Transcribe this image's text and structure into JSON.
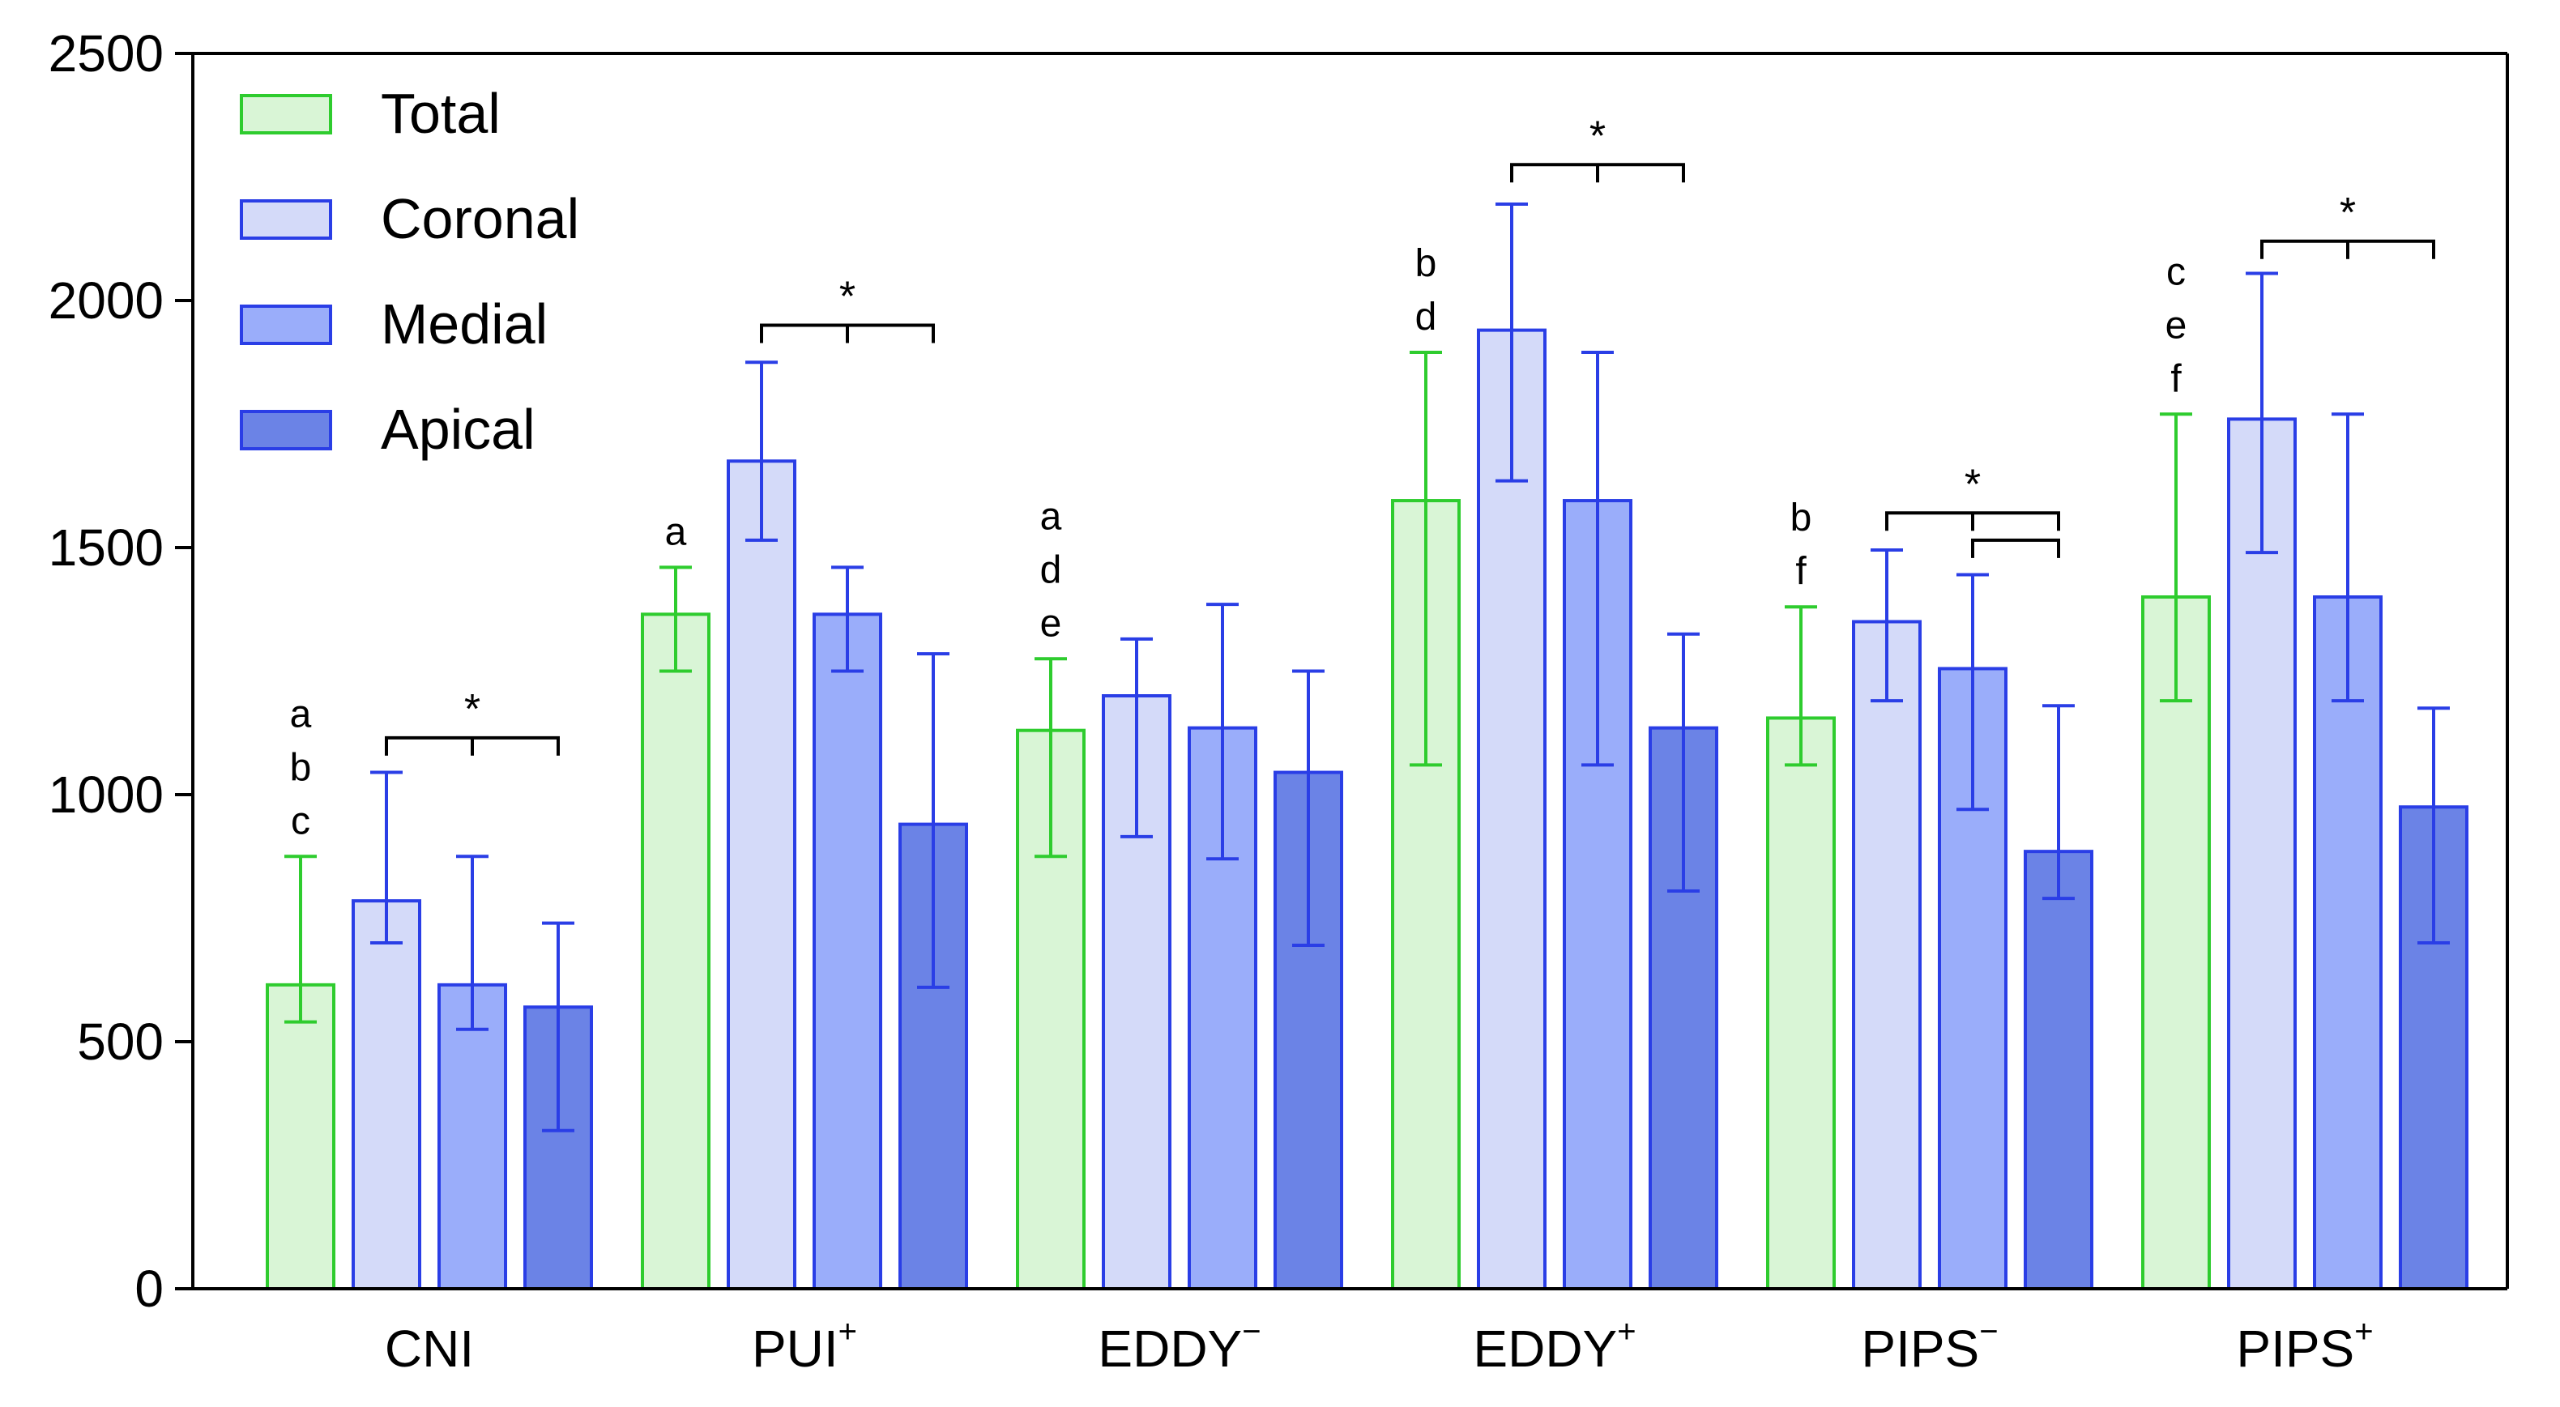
{
  "chart_data": {
    "type": "bar",
    "title": "",
    "xlabel": "",
    "ylabel": "",
    "ylim": [
      0,
      2500
    ],
    "yticks": [
      0,
      500,
      1000,
      1500,
      2000,
      2500
    ],
    "categories": [
      {
        "base": "CNI",
        "sup": ""
      },
      {
        "base": "PUI",
        "sup": "+"
      },
      {
        "base": "EDDY",
        "sup": "−"
      },
      {
        "base": "EDDY",
        "sup": "+"
      },
      {
        "base": "PIPS",
        "sup": "−"
      },
      {
        "base": "PIPS",
        "sup": "+"
      }
    ],
    "legend_position": "top-left",
    "series": [
      {
        "name": "Total",
        "fill": "#d9f5d6",
        "stroke": "#2ecc2e",
        "values": [
          615,
          1365,
          1130,
          1595,
          1155,
          1400
        ],
        "err_low": [
          540,
          1250,
          875,
          1060,
          1060,
          1190
        ],
        "err_high": [
          875,
          1460,
          1275,
          1895,
          1380,
          1770
        ]
      },
      {
        "name": "Coronal",
        "fill": "#d4daf9",
        "stroke": "#2a3ee6",
        "values": [
          785,
          1675,
          1200,
          1940,
          1350,
          1760
        ],
        "err_low": [
          700,
          1515,
          915,
          1635,
          1190,
          1490
        ],
        "err_high": [
          1045,
          1875,
          1315,
          2195,
          1495,
          2055
        ]
      },
      {
        "name": "Medial",
        "fill": "#9aadfa",
        "stroke": "#2a3ee6",
        "values": [
          615,
          1365,
          1135,
          1595,
          1255,
          1400
        ],
        "err_low": [
          525,
          1250,
          870,
          1060,
          970,
          1190
        ],
        "err_high": [
          875,
          1460,
          1385,
          1895,
          1445,
          1770
        ]
      },
      {
        "name": "Apical",
        "fill": "#6b83e6",
        "stroke": "#2a3ee6",
        "values": [
          570,
          940,
          1045,
          1135,
          885,
          975
        ],
        "err_low": [
          320,
          610,
          695,
          805,
          790,
          700
        ],
        "err_high": [
          740,
          1285,
          1250,
          1325,
          1180,
          1175
        ]
      }
    ],
    "significance_letters": [
      [
        "a",
        "b",
        "c"
      ],
      [
        "a"
      ],
      [
        "a",
        "d",
        "e"
      ],
      [
        "b",
        "d"
      ],
      [
        "b",
        "f"
      ],
      [
        "c",
        "e",
        "f"
      ]
    ],
    "brackets": [
      {
        "group": 0,
        "from": 1,
        "to": 3,
        "y": 1115,
        "star": "*"
      },
      {
        "group": 1,
        "from": 1,
        "to": 3,
        "y": 1950,
        "star": "*"
      },
      {
        "group": 3,
        "from": 1,
        "to": 3,
        "y": 2275,
        "star": "*"
      },
      {
        "group": 4,
        "from": 1,
        "to": 3,
        "y": 1570,
        "star": "*"
      },
      {
        "group": 4,
        "from": 2,
        "to": 3,
        "y": 1515,
        "star": ""
      },
      {
        "group": 5,
        "from": 1,
        "to": 3,
        "y": 2120,
        "star": "*"
      }
    ]
  }
}
